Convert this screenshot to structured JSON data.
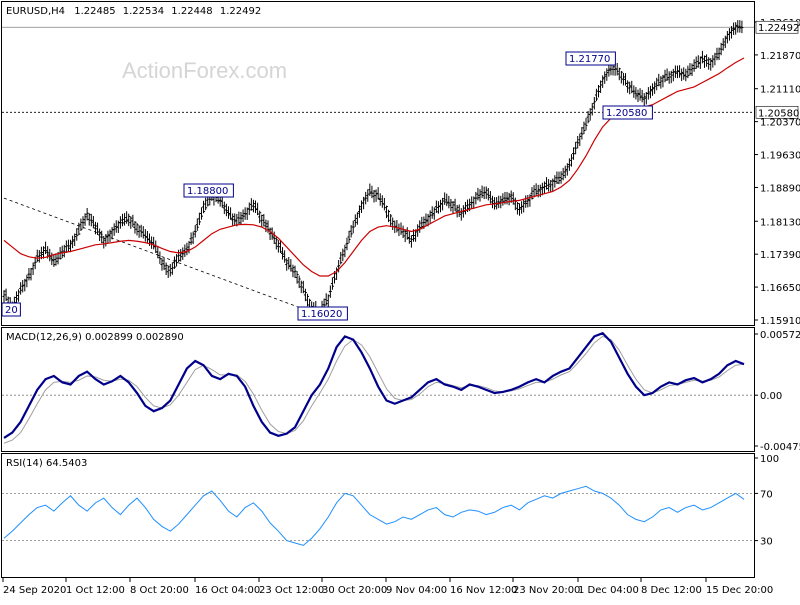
{
  "chart_data": [
    {
      "type": "line",
      "panel": "price",
      "header": {
        "symbol": "EURUSD,H4",
        "open": "1.22485",
        "high": "1.22534",
        "low": "1.22448",
        "close": "1.22492"
      },
      "watermark": "ActionForex.com",
      "ylim": [
        1.1591,
        1.2261
      ],
      "yticks": [
        "1.22610",
        "1.21870",
        "1.21110",
        "1.20370",
        "1.19630",
        "1.18890",
        "1.18130",
        "1.17390",
        "1.16650",
        "1.15910"
      ],
      "current_price": {
        "label": "1.22492",
        "value": 1.22492
      },
      "support_line": {
        "label": "1.20580",
        "value": 1.2058
      },
      "annotations": [
        {
          "label": "1.18800",
          "value": 1.188
        },
        {
          "label": "1.16020",
          "value": 1.1602
        },
        {
          "label": "1.21770",
          "value": 1.2177
        },
        {
          "label": "1.20580",
          "value": 1.2058
        },
        {
          "label": "20",
          "value": 1.1602
        }
      ],
      "price_path": [
        1.165,
        1.162,
        1.166,
        1.169,
        1.173,
        1.175,
        1.172,
        1.174,
        1.176,
        1.179,
        1.183,
        1.18,
        1.177,
        1.179,
        1.181,
        1.182,
        1.18,
        1.178,
        1.176,
        1.172,
        1.17,
        1.173,
        1.175,
        1.179,
        1.184,
        1.187,
        1.186,
        1.183,
        1.181,
        1.183,
        1.185,
        1.182,
        1.179,
        1.176,
        1.172,
        1.17,
        1.166,
        1.162,
        1.161,
        1.164,
        1.17,
        1.175,
        1.18,
        1.185,
        1.188,
        1.187,
        1.184,
        1.18,
        1.179,
        1.177,
        1.18,
        1.182,
        1.184,
        1.186,
        1.185,
        1.183,
        1.185,
        1.187,
        1.188,
        1.185,
        1.186,
        1.187,
        1.184,
        1.186,
        1.188,
        1.189,
        1.19,
        1.191,
        1.194,
        1.199,
        1.203,
        1.208,
        1.213,
        1.216,
        1.215,
        1.212,
        1.21,
        1.209,
        1.211,
        1.213,
        1.214,
        1.215,
        1.214,
        1.216,
        1.218,
        1.217,
        1.219,
        1.223,
        1.225,
        1.2249
      ],
      "ma_path": [
        1.177,
        1.1755,
        1.174,
        1.1733,
        1.173,
        1.1732,
        1.1738,
        1.1742,
        1.1745,
        1.175,
        1.1755,
        1.176,
        1.1762,
        1.1765,
        1.1768,
        1.177,
        1.1768,
        1.1765,
        1.176,
        1.1752,
        1.1745,
        1.1742,
        1.1745,
        1.1755,
        1.177,
        1.1785,
        1.1795,
        1.18,
        1.1805,
        1.1806,
        1.1805,
        1.18,
        1.179,
        1.1775,
        1.1755,
        1.1735,
        1.1715,
        1.17,
        1.169,
        1.169,
        1.17,
        1.172,
        1.1745,
        1.177,
        1.179,
        1.18,
        1.1803,
        1.18,
        1.1795,
        1.179,
        1.1795,
        1.1805,
        1.1815,
        1.1825,
        1.183,
        1.1835,
        1.184,
        1.1845,
        1.185,
        1.1852,
        1.1855,
        1.1858,
        1.186,
        1.1865,
        1.187,
        1.1875,
        1.188,
        1.189,
        1.1905,
        1.193,
        1.196,
        1.1995,
        1.2025,
        1.2045,
        1.2055,
        1.206,
        1.2065,
        1.207,
        1.2075,
        1.2085,
        1.2095,
        1.2105,
        1.211,
        1.2115,
        1.2125,
        1.2135,
        1.2145,
        1.2158,
        1.217,
        1.218
      ],
      "trend_line": {
        "from": [
          0,
          1.1865
        ],
        "to": [
          38,
          1.1602
        ]
      }
    },
    {
      "type": "line",
      "panel": "macd",
      "header": "MACD(12,26,9) 0.002899 0.002890",
      "ylim": [
        -0.004755,
        0.005725
      ],
      "yticks": [
        "0.005725",
        "0.00",
        "-0.004755"
      ],
      "zero": 0.0,
      "macd_path": [
        -0.004,
        -0.0035,
        -0.0025,
        -0.001,
        0.0005,
        0.0015,
        0.0018,
        0.0012,
        0.001,
        0.0018,
        0.0022,
        0.0015,
        0.001,
        0.0013,
        0.0018,
        0.0012,
        0.0002,
        -0.001,
        -0.0015,
        -0.0012,
        -0.0005,
        0.001,
        0.0025,
        0.0032,
        0.0028,
        0.0018,
        0.0015,
        0.002,
        0.0018,
        0.0008,
        -0.001,
        -0.0025,
        -0.0035,
        -0.0038,
        -0.0036,
        -0.003,
        -0.0015,
        0.0,
        0.001,
        0.0025,
        0.0045,
        0.0055,
        0.0052,
        0.004,
        0.0025,
        0.0008,
        -0.0005,
        -0.0008,
        -0.0005,
        -0.0002,
        0.0005,
        0.0012,
        0.0015,
        0.001,
        0.0008,
        0.0005,
        0.001,
        0.0008,
        0.0005,
        0.0002,
        0.0003,
        0.0005,
        0.0008,
        0.0012,
        0.0015,
        0.0012,
        0.0018,
        0.0022,
        0.0025,
        0.0035,
        0.0045,
        0.0055,
        0.0058,
        0.005,
        0.0035,
        0.002,
        0.0008,
        0.0,
        0.0002,
        0.0008,
        0.0012,
        0.001,
        0.0014,
        0.0016,
        0.0012,
        0.0015,
        0.002,
        0.0028,
        0.0032,
        0.0029
      ],
      "signal_path": [
        -0.0045,
        -0.0042,
        -0.0035,
        -0.0022,
        -0.0008,
        0.0005,
        0.0012,
        0.0013,
        0.0012,
        0.0014,
        0.0018,
        0.0017,
        0.0014,
        0.0013,
        0.0015,
        0.0014,
        0.0008,
        -0.0002,
        -0.001,
        -0.0012,
        -0.0009,
        0.0,
        0.0012,
        0.0024,
        0.0028,
        0.0024,
        0.0019,
        0.0019,
        0.0019,
        0.0013,
        0.0001,
        -0.0014,
        -0.0027,
        -0.0034,
        -0.0036,
        -0.0033,
        -0.0024,
        -0.001,
        0.0002,
        0.0015,
        0.0032,
        0.0046,
        0.0052,
        0.0047,
        0.0036,
        0.0021,
        0.0006,
        -0.0003,
        -0.0005,
        -0.0004,
        0.0001,
        0.0008,
        0.0012,
        0.0011,
        0.0009,
        0.0007,
        0.0009,
        0.0009,
        0.0007,
        0.0004,
        0.0003,
        0.0004,
        0.0006,
        0.0009,
        0.0012,
        0.0012,
        0.0015,
        0.0019,
        0.0022,
        0.003,
        0.0039,
        0.0049,
        0.0055,
        0.0052,
        0.0042,
        0.0028,
        0.0015,
        0.0005,
        0.0002,
        0.0005,
        0.0009,
        0.001,
        0.0012,
        0.0014,
        0.0013,
        0.0014,
        0.0017,
        0.0023,
        0.0028,
        0.0029
      ]
    },
    {
      "type": "line",
      "panel": "rsi",
      "header": "RSI(14) 64.5403",
      "ylim": [
        0,
        100
      ],
      "yticks": [
        "100",
        "70",
        "30"
      ],
      "levels": [
        70,
        30
      ],
      "rsi_path": [
        32,
        38,
        45,
        52,
        58,
        60,
        55,
        62,
        68,
        60,
        55,
        62,
        66,
        58,
        52,
        60,
        66,
        58,
        48,
        42,
        38,
        44,
        52,
        60,
        68,
        72,
        64,
        55,
        50,
        58,
        62,
        55,
        45,
        38,
        30,
        28,
        26,
        32,
        40,
        50,
        62,
        70,
        68,
        60,
        52,
        48,
        44,
        46,
        50,
        48,
        52,
        56,
        58,
        52,
        50,
        54,
        56,
        55,
        52,
        54,
        58,
        60,
        56,
        62,
        65,
        68,
        66,
        70,
        72,
        74,
        76,
        72,
        70,
        66,
        60,
        52,
        48,
        46,
        50,
        56,
        58,
        54,
        58,
        60,
        56,
        58,
        62,
        66,
        70,
        65
      ]
    }
  ],
  "x_axis": {
    "labels": [
      "24 Sep 2020",
      "1 Oct 12:00",
      "8 Oct 20:00",
      "16 Oct 04:00",
      "23 Oct 12:00",
      "30 Oct 20:00",
      "9 Nov 04:00",
      "16 Nov 12:00",
      "23 Nov 20:00",
      "1 Dec 04:00",
      "8 Dec 12:00",
      "15 Dec 20:00"
    ]
  },
  "colors": {
    "price": "#000000",
    "ma": "#cc0000",
    "macd": "#00008b",
    "signal": "#a0a0a0",
    "rsi": "#1e90ff",
    "frame": "#000000",
    "dotted": "#808080",
    "watermark": "#d5d5d5"
  }
}
